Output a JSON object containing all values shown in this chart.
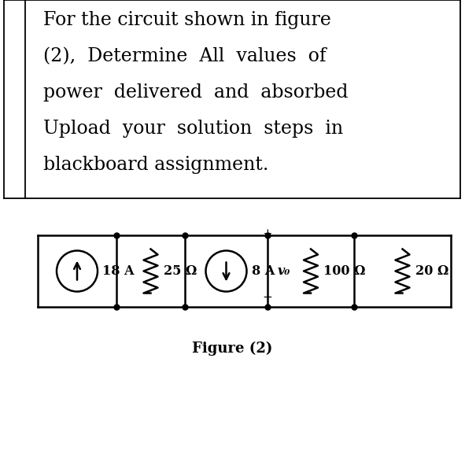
{
  "bg_color": "#ffffff",
  "text_color": "#000000",
  "title_lines": [
    "For the circuit shown in figure",
    "(2),  Determine  All  values  of",
    "power  delivered  and  absorbed",
    "Upload  your  solution  steps  in",
    "blackboard assignment."
  ],
  "figure_label": "Figure (2)",
  "circuit": {
    "source1_label": "18 A",
    "res1_label": "25 Ω",
    "source2_label": "8 A",
    "vp_label": "v₀",
    "res2_label": "100 Ω",
    "res3_label": "20 Ω"
  }
}
